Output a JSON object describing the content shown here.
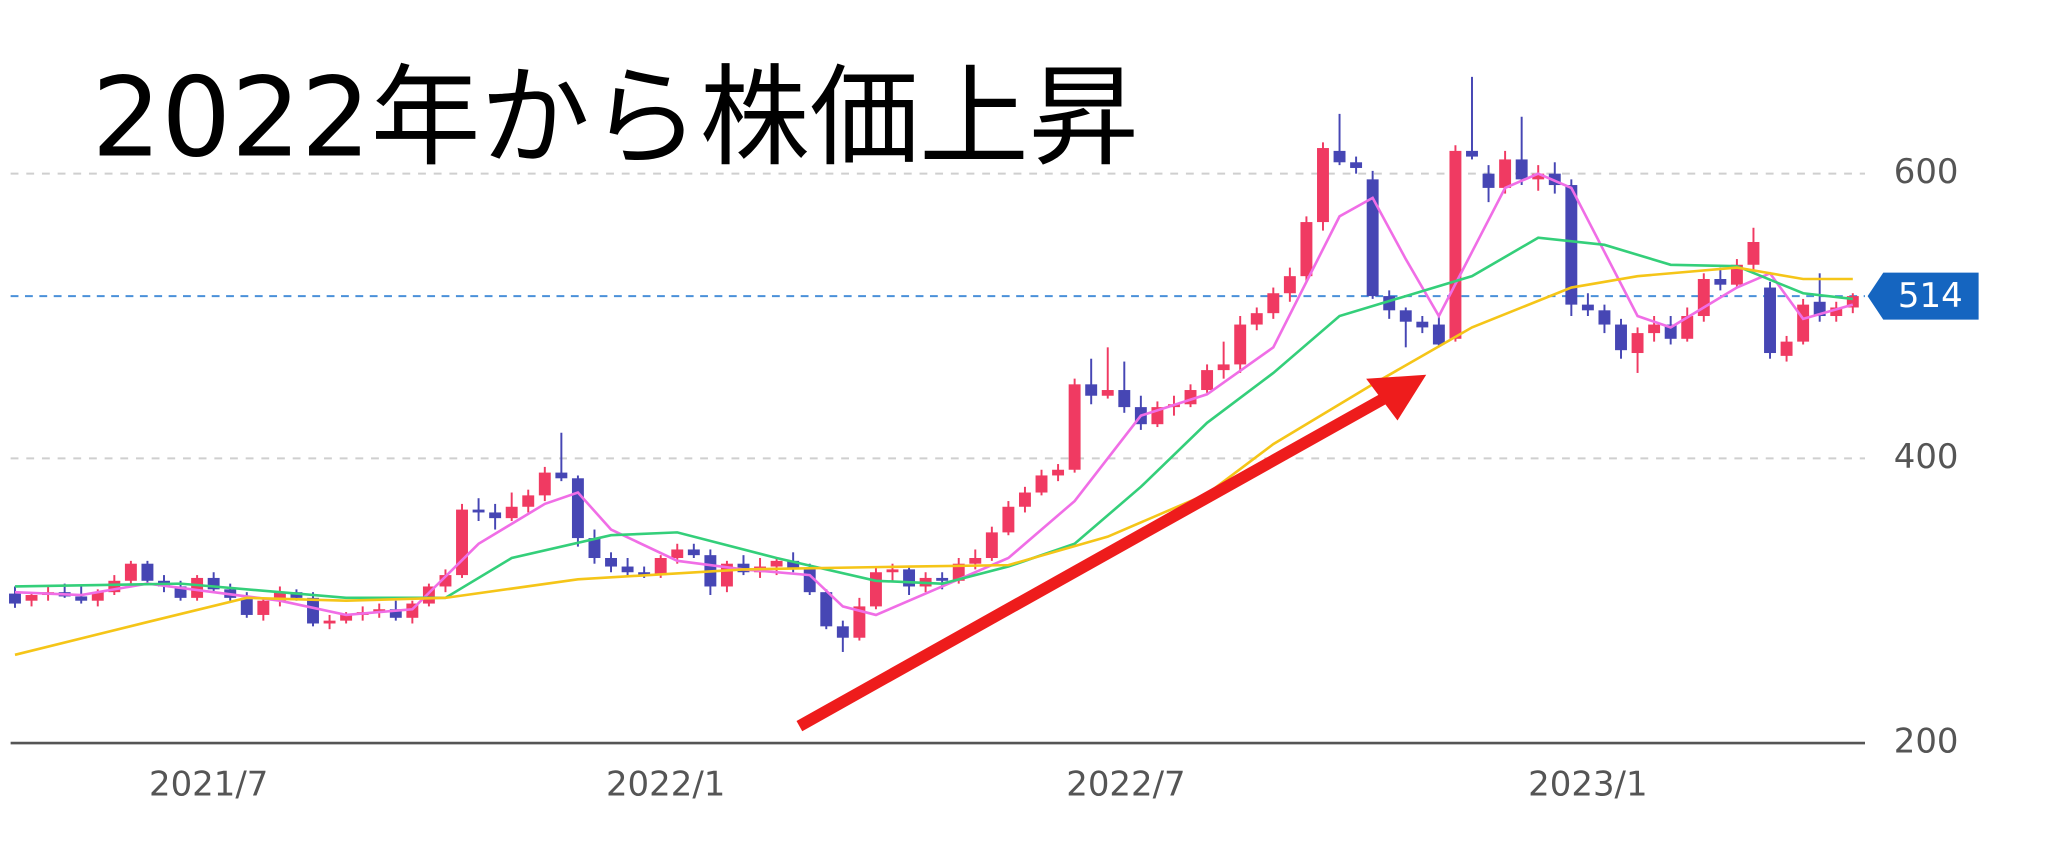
{
  "chart_data": {
    "type": "candlestick",
    "title": "2022年から株価上昇",
    "open": [
      305,
      300,
      304,
      306,
      303,
      300,
      306,
      314,
      326,
      314,
      310,
      302,
      316,
      308,
      302,
      290,
      300,
      306,
      302,
      284,
      286,
      290,
      292,
      294,
      288,
      298,
      310,
      318,
      364,
      362,
      358,
      366,
      374,
      390,
      386,
      344,
      330,
      324,
      320,
      318,
      330,
      336,
      332,
      310,
      326,
      320,
      324,
      328,
      322,
      306,
      282,
      274,
      296,
      320,
      322,
      310,
      316,
      314,
      326,
      330,
      348,
      366,
      376,
      388,
      392,
      452,
      444,
      448,
      436,
      424,
      436,
      438,
      448,
      462,
      466,
      494,
      502,
      516,
      528,
      566,
      616,
      608,
      596,
      514,
      504,
      496,
      494,
      484,
      616,
      600,
      590,
      610,
      596,
      600,
      592,
      508,
      504,
      494,
      474,
      488,
      494,
      484,
      500,
      526,
      522,
      536,
      520,
      472,
      482,
      510,
      500,
      506
    ],
    "high": [
      310,
      306,
      310,
      312,
      310,
      308,
      318,
      328,
      328,
      318,
      314,
      318,
      320,
      312,
      306,
      302,
      310,
      308,
      306,
      290,
      292,
      296,
      298,
      300,
      300,
      312,
      322,
      368,
      372,
      368,
      376,
      378,
      394,
      418,
      388,
      350,
      334,
      330,
      324,
      332,
      340,
      340,
      336,
      328,
      332,
      330,
      330,
      334,
      326,
      308,
      286,
      302,
      324,
      326,
      324,
      320,
      320,
      330,
      336,
      352,
      370,
      380,
      392,
      396,
      456,
      470,
      478,
      468,
      444,
      440,
      444,
      452,
      466,
      482,
      500,
      506,
      520,
      534,
      570,
      622,
      642,
      612,
      602,
      518,
      506,
      500,
      500,
      620,
      668,
      606,
      616,
      640,
      606,
      608,
      596,
      516,
      508,
      498,
      492,
      500,
      500,
      506,
      530,
      534,
      540,
      562,
      524,
      486,
      512,
      530,
      510,
      516
    ],
    "low": [
      295,
      296,
      300,
      302,
      298,
      296,
      304,
      312,
      312,
      306,
      300,
      300,
      306,
      300,
      288,
      286,
      296,
      300,
      282,
      280,
      284,
      286,
      288,
      286,
      284,
      296,
      306,
      316,
      356,
      350,
      356,
      362,
      370,
      384,
      338,
      326,
      320,
      318,
      316,
      316,
      326,
      330,
      304,
      306,
      318,
      316,
      318,
      320,
      304,
      280,
      264,
      272,
      294,
      314,
      304,
      306,
      308,
      312,
      322,
      328,
      346,
      362,
      374,
      384,
      390,
      438,
      442,
      432,
      420,
      422,
      430,
      436,
      446,
      456,
      460,
      490,
      498,
      510,
      524,
      560,
      606,
      600,
      512,
      498,
      478,
      488,
      478,
      482,
      610,
      580,
      586,
      592,
      588,
      586,
      500,
      500,
      488,
      470,
      460,
      482,
      480,
      482,
      496,
      518,
      520,
      532,
      470,
      468,
      480,
      496,
      496,
      502
    ],
    "close": [
      298,
      304,
      306,
      303,
      300,
      306,
      314,
      326,
      314,
      310,
      302,
      316,
      308,
      302,
      290,
      300,
      306,
      302,
      284,
      286,
      290,
      292,
      294,
      288,
      298,
      310,
      318,
      364,
      362,
      358,
      366,
      374,
      390,
      386,
      344,
      330,
      324,
      320,
      318,
      330,
      336,
      332,
      310,
      326,
      320,
      324,
      328,
      322,
      306,
      282,
      274,
      296,
      320,
      322,
      310,
      316,
      314,
      326,
      330,
      348,
      366,
      376,
      388,
      392,
      452,
      444,
      448,
      436,
      424,
      436,
      438,
      448,
      462,
      466,
      494,
      502,
      516,
      528,
      566,
      618,
      608,
      604,
      514,
      504,
      496,
      492,
      480,
      616,
      612,
      590,
      610,
      596,
      600,
      592,
      508,
      504,
      494,
      476,
      488,
      494,
      484,
      500,
      526,
      522,
      536,
      552,
      474,
      482,
      508,
      500,
      506,
      514
    ],
    "up_color": "#f03a62",
    "down_color": "#4646b4",
    "series": [
      {
        "color": "#f06ee6",
        "x": [
          0,
          4,
          8,
          12,
          16,
          20,
          24,
          28,
          32,
          34,
          36,
          40,
          44,
          48,
          50,
          52,
          56,
          60,
          64,
          68,
          72,
          76,
          80,
          82,
          84,
          86,
          88,
          90,
          92,
          94,
          96,
          98,
          100,
          104,
          106,
          108,
          111
        ],
        "values": [
          306,
          304,
          312,
          306,
          300,
          290,
          294,
          340,
          368,
          376,
          350,
          328,
          322,
          318,
          296,
          290,
          310,
          330,
          370,
          430,
          445,
          478,
          570,
          583,
          540,
          500,
          545,
          590,
          600,
          590,
          545,
          500,
          492,
          520,
          530,
          498,
          508
        ]
      },
      {
        "color": "#34cf7a",
        "x": [
          0,
          10,
          20,
          26,
          30,
          36,
          40,
          46,
          52,
          56,
          60,
          64,
          68,
          72,
          76,
          80,
          84,
          88,
          92,
          96,
          100,
          104,
          108,
          111
        ],
        "values": [
          310,
          312,
          302,
          302,
          330,
          346,
          348,
          330,
          314,
          312,
          324,
          340,
          380,
          425,
          460,
          500,
          514,
          528,
          555,
          550,
          536,
          535,
          516,
          512
        ]
      },
      {
        "color": "#f5c518",
        "x": [
          0,
          8,
          14,
          20,
          26,
          34,
          44,
          54,
          60,
          66,
          72,
          76,
          82,
          88,
          94,
          98,
          104,
          108,
          111
        ],
        "values": [
          262,
          285,
          302,
          300,
          302,
          315,
          322,
          324,
          325,
          345,
          375,
          410,
          452,
          492,
          520,
          528,
          534,
          526,
          526
        ]
      }
    ],
    "current_price": 514,
    "xlim": [
      0,
      112
    ],
    "xticks": [
      {
        "value": 12.2,
        "label": "2021/7"
      },
      {
        "value": 39.8,
        "label": "2022/1"
      },
      {
        "value": 67.6,
        "label": "2022/7"
      },
      {
        "value": 95.5,
        "label": "2023/1"
      }
    ],
    "ylim": [
      200,
      722
    ],
    "yticks": [
      200,
      400,
      600
    ],
    "grid": true
  }
}
